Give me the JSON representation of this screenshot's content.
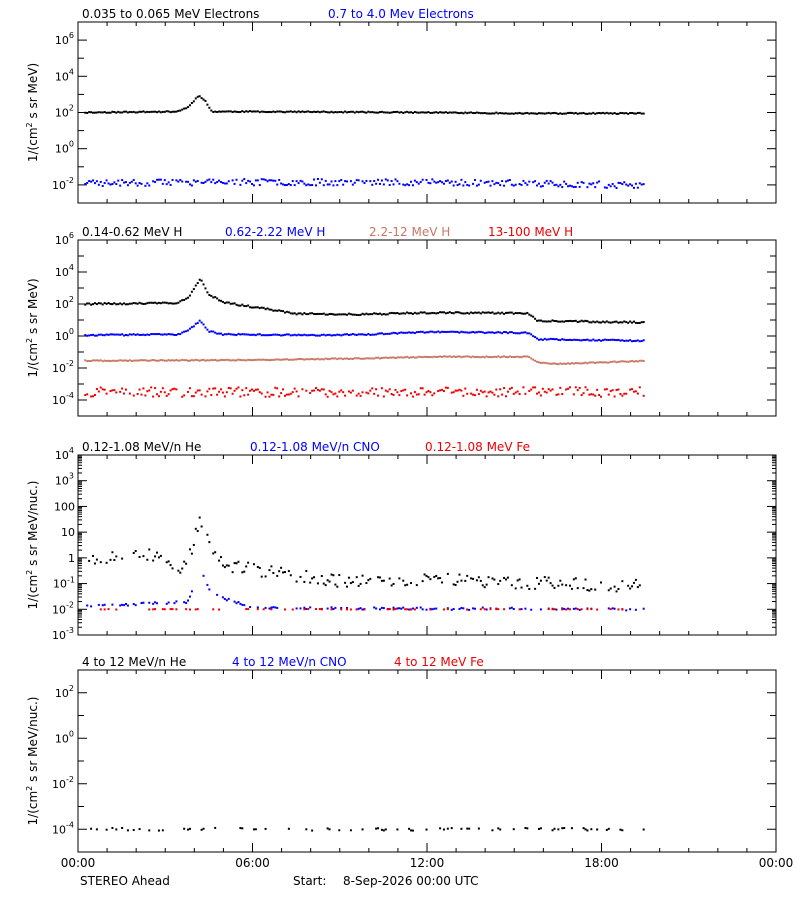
{
  "footer": {
    "spacecraft": "STEREO Ahead",
    "start_label": "Start:",
    "start_value": "8-Sep-2026 00:00 UTC"
  },
  "colors": {
    "black": "#000000",
    "blue": "#0000ff",
    "salmon": "#c87864",
    "red": "#ee0000",
    "axis": "#000000"
  },
  "x_axis": {
    "range_hours": [
      0,
      24
    ],
    "ticks": [
      {
        "h": 0,
        "label": "00:00"
      },
      {
        "h": 6,
        "label": "06:00"
      },
      {
        "h": 12,
        "label": "12:00"
      },
      {
        "h": 18,
        "label": "18:00"
      },
      {
        "h": 24,
        "label": "00:00"
      }
    ]
  },
  "chart_data": [
    {
      "type": "scatter",
      "ylabel": "1/(cm² s sr MeV)",
      "yscale": "log",
      "ylim_exp": [
        -3,
        7
      ],
      "ticks_exp": [
        -2,
        0,
        2,
        4,
        6
      ],
      "legend": [
        {
          "text": "0.035 to 0.065 MeV Electrons",
          "color": "black"
        },
        {
          "text": "0.7 to 4.0 Mev Electrons",
          "color": "blue"
        }
      ],
      "series": [
        {
          "name": "0.035 to 0.065 MeV Electrons",
          "color": "black",
          "kp": [
            [
              0.25,
              2.0
            ],
            [
              3.4,
              2.05
            ],
            [
              3.8,
              2.3
            ],
            [
              4.15,
              2.95
            ],
            [
              4.35,
              2.7
            ],
            [
              4.6,
              2.05
            ],
            [
              6,
              2.05
            ],
            [
              12,
              2.0
            ],
            [
              15.5,
              1.95
            ],
            [
              19.5,
              1.95
            ]
          ],
          "noise": 0.03,
          "drop": 0,
          "seed": 11
        },
        {
          "name": "0.7 to 4.0 Mev Electrons",
          "color": "blue",
          "kp": [
            [
              0.25,
              -1.9
            ],
            [
              6,
              -1.85
            ],
            [
              12,
              -1.85
            ],
            [
              17,
              -1.95
            ],
            [
              19.5,
              -2.05
            ]
          ],
          "noise": 0.18,
          "drop": 0.05,
          "seed": 23
        }
      ]
    },
    {
      "type": "scatter",
      "ylabel": "1/(cm² s sr MeV)",
      "yscale": "log",
      "ylim_exp": [
        -5,
        6
      ],
      "ticks_exp": [
        -4,
        -2,
        0,
        2,
        4,
        6
      ],
      "legend": [
        {
          "text": "0.14-0.62 MeV H",
          "color": "black"
        },
        {
          "text": "0.62-2.22 MeV H",
          "color": "blue"
        },
        {
          "text": "2.2-12 MeV H",
          "color": "salmon"
        },
        {
          "text": "13-100 MeV H",
          "color": "red"
        }
      ],
      "series": [
        {
          "name": "0.14-0.62 MeV H",
          "color": "black",
          "kp": [
            [
              0.25,
              2.0
            ],
            [
              3.4,
              2.05
            ],
            [
              3.8,
              2.4
            ],
            [
              4.2,
              3.6
            ],
            [
              4.5,
              2.6
            ],
            [
              5,
              2.1
            ],
            [
              7.5,
              1.4
            ],
            [
              9.5,
              1.35
            ],
            [
              12,
              1.45
            ],
            [
              14,
              1.45
            ],
            [
              15.5,
              1.4
            ],
            [
              15.8,
              0.95
            ],
            [
              19.5,
              0.85
            ]
          ],
          "noise": 0.05,
          "drop": 0,
          "seed": 31
        },
        {
          "name": "0.62-2.22 MeV H",
          "color": "blue",
          "kp": [
            [
              0.25,
              0.05
            ],
            [
              3.5,
              0.1
            ],
            [
              3.9,
              0.5
            ],
            [
              4.2,
              0.95
            ],
            [
              4.5,
              0.3
            ],
            [
              5,
              0.1
            ],
            [
              8,
              0.05
            ],
            [
              10,
              0.1
            ],
            [
              12,
              0.25
            ],
            [
              15.5,
              0.2
            ],
            [
              15.8,
              -0.2
            ],
            [
              19.5,
              -0.3
            ]
          ],
          "noise": 0.04,
          "drop": 0,
          "seed": 37
        },
        {
          "name": "2.2-12 MeV H",
          "color": "salmon",
          "kp": [
            [
              0.25,
              -1.55
            ],
            [
              6,
              -1.5
            ],
            [
              10,
              -1.4
            ],
            [
              12,
              -1.3
            ],
            [
              15.5,
              -1.3
            ],
            [
              15.8,
              -1.65
            ],
            [
              16.5,
              -1.75
            ],
            [
              19.5,
              -1.55
            ]
          ],
          "noise": 0.03,
          "drop": 0,
          "seed": 41
        },
        {
          "name": "13-100 MeV H",
          "color": "red",
          "kp": [
            [
              0.25,
              -3.5
            ],
            [
              19.5,
              -3.5
            ]
          ],
          "noise": 0.3,
          "drop": 0.12,
          "seed": 43
        }
      ]
    },
    {
      "type": "scatter",
      "ylabel": "1/(cm² s sr MeV/nuc.)",
      "yscale": "log",
      "ylim_exp": [
        -3,
        4
      ],
      "ticks_exp": [
        -3,
        -2,
        -1,
        0,
        1,
        2,
        3,
        4
      ],
      "tick_style": "mixed",
      "legend": [
        {
          "text": "0.12-1.08 MeV/n He",
          "color": "black"
        },
        {
          "text": "0.12-1.08 MeV/n CNO",
          "color": "blue"
        },
        {
          "text": "0.12-1.08 MeV Fe",
          "color": "red"
        }
      ],
      "series": [
        {
          "name": "0.12-1.08 MeV/n He",
          "color": "black",
          "kp": [
            [
              0.25,
              0.0
            ],
            [
              2.5,
              0.1
            ],
            [
              3.5,
              -0.4
            ],
            [
              3.9,
              0.3
            ],
            [
              4.2,
              1.6
            ],
            [
              4.5,
              0.5
            ],
            [
              5,
              -0.3
            ],
            [
              7,
              -0.6
            ],
            [
              9,
              -0.9
            ],
            [
              12,
              -0.85
            ],
            [
              15,
              -0.95
            ],
            [
              19.5,
              -1.1
            ]
          ],
          "noise": 0.25,
          "drop": 0.3,
          "seed": 53
        },
        {
          "name": "0.12-1.08 MeV/n CNO",
          "color": "blue",
          "kp": [
            [
              0.25,
              -1.9
            ],
            [
              3.8,
              -1.7
            ],
            [
              4.2,
              -0.4
            ],
            [
              4.6,
              -1.4
            ],
            [
              6,
              -1.95
            ],
            [
              19.5,
              -2.0
            ]
          ],
          "noise": 0.05,
          "drop": 0.55,
          "seed": 61
        },
        {
          "name": "0.12-1.08 MeV Fe",
          "color": "red",
          "kp": [
            [
              0.25,
              -2.0
            ],
            [
              19.5,
              -2.0
            ]
          ],
          "noise": 0.01,
          "drop": 0.75,
          "seed": 67
        }
      ]
    },
    {
      "type": "scatter",
      "ylabel": "1/(cm² s sr MeV/nuc.)",
      "yscale": "log",
      "ylim_exp": [
        -5,
        3
      ],
      "ticks_exp": [
        -4,
        -2,
        0,
        2
      ],
      "legend": [
        {
          "text": "4 to 12 MeV/n He",
          "color": "black"
        },
        {
          "text": "4 to 12 MeV/n CNO",
          "color": "blue"
        },
        {
          "text": "4 to 12 MeV Fe",
          "color": "red"
        }
      ],
      "series": [
        {
          "name": "4 to 12 MeV/n He",
          "color": "black",
          "kp": [
            [
              0.25,
              -4.0
            ],
            [
              19.5,
              -4.0
            ]
          ],
          "noise": 0.06,
          "drop": 0.75,
          "seed": 71
        }
      ]
    }
  ]
}
